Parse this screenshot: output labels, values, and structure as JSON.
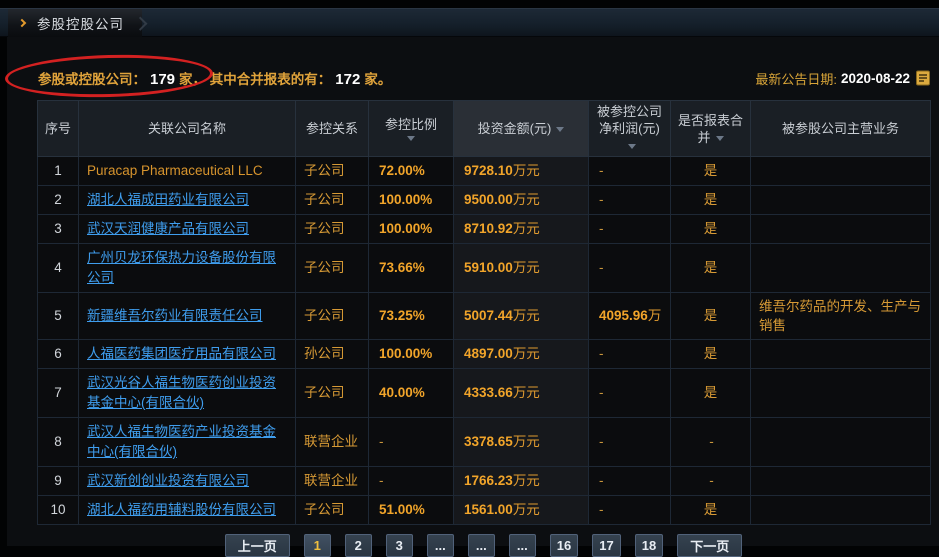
{
  "tab": {
    "title": "参股控股公司"
  },
  "summary": {
    "label1": "参股或控股公司：",
    "count1": "179",
    "unit1": "家，",
    "label2": "其中合并报表的有：",
    "count2": "172",
    "unit2": "家。"
  },
  "announcement": {
    "label": "最新公告日期:",
    "date": "2020-08-22",
    "icon": "calendar-note-icon"
  },
  "annotation": {
    "shape": "red-ellipse",
    "color": "#d32121",
    "around": "参股或控股公司：179 家，"
  },
  "colors": {
    "accent_orange": "#d79a35",
    "value_orange": "#f2a52a",
    "link_blue": "#3f9ded",
    "annotation_red": "#d32121",
    "page_active_text": "#f0bf3e"
  },
  "table": {
    "headers": [
      {
        "label": "序号",
        "sort": false
      },
      {
        "label": "关联公司名称",
        "sort": false
      },
      {
        "label": "参控关系",
        "sort": false
      },
      {
        "label": "参控比例",
        "sort": true,
        "arrow_below": true
      },
      {
        "label": "投资金额(元)",
        "sort": true,
        "highlight": true
      },
      {
        "label": "被参控公司净利润(元)",
        "sort": true
      },
      {
        "label": "是否报表合并",
        "sort": true
      },
      {
        "label": "被参股公司主营业务",
        "sort": false
      }
    ],
    "rows": [
      {
        "no": "1",
        "name": "Puracap Pharmaceutical LLC",
        "link": false,
        "relation": "子公司",
        "ratio": "72.00%",
        "amount_num": "9728.10",
        "amount_unit": "万元",
        "profit_num": "",
        "profit_unit": "",
        "merged": "是",
        "business": ""
      },
      {
        "no": "2",
        "name": "湖北人福成田药业有限公司",
        "link": true,
        "relation": "子公司",
        "ratio": "100.00%",
        "amount_num": "9500.00",
        "amount_unit": "万元",
        "profit_num": "",
        "profit_unit": "",
        "merged": "是",
        "business": ""
      },
      {
        "no": "3",
        "name": "武汉天润健康产品有限公司",
        "link": true,
        "relation": "子公司",
        "ratio": "100.00%",
        "amount_num": "8710.92",
        "amount_unit": "万元",
        "profit_num": "",
        "profit_unit": "",
        "merged": "是",
        "business": ""
      },
      {
        "no": "4",
        "name": "广州贝龙环保热力设备股份有限公司",
        "link": true,
        "relation": "子公司",
        "ratio": "73.66%",
        "amount_num": "5910.00",
        "amount_unit": "万元",
        "profit_num": "",
        "profit_unit": "",
        "merged": "是",
        "business": ""
      },
      {
        "no": "5",
        "name": "新疆维吾尔药业有限责任公司",
        "link": true,
        "relation": "子公司",
        "ratio": "73.25%",
        "amount_num": "5007.44",
        "amount_unit": "万元",
        "profit_num": "4095.96",
        "profit_unit": "万",
        "merged": "是",
        "business": "维吾尔药品的开发、生产与销售"
      },
      {
        "no": "6",
        "name": "人福医药集团医疗用品有限公司",
        "link": true,
        "relation": "孙公司",
        "ratio": "100.00%",
        "amount_num": "4897.00",
        "amount_unit": "万元",
        "profit_num": "",
        "profit_unit": "",
        "merged": "是",
        "business": ""
      },
      {
        "no": "7",
        "name": "武汉光谷人福生物医药创业投资基金中心(有限合伙)",
        "link": true,
        "relation": "子公司",
        "ratio": "40.00%",
        "amount_num": "4333.66",
        "amount_unit": "万元",
        "profit_num": "",
        "profit_unit": "",
        "merged": "是",
        "business": ""
      },
      {
        "no": "8",
        "name": "武汉人福生物医药产业投资基金中心(有限合伙)",
        "link": true,
        "relation": "联营企业",
        "ratio": "-",
        "amount_num": "3378.65",
        "amount_unit": "万元",
        "profit_num": "",
        "profit_unit": "",
        "merged": "-",
        "business": ""
      },
      {
        "no": "9",
        "name": "武汉新创创业投资有限公司",
        "link": true,
        "relation": "联营企业",
        "ratio": "-",
        "amount_num": "1766.23",
        "amount_unit": "万元",
        "profit_num": "",
        "profit_unit": "",
        "merged": "-",
        "business": ""
      },
      {
        "no": "10",
        "name": "湖北人福药用辅料股份有限公司",
        "link": true,
        "relation": "子公司",
        "ratio": "51.00%",
        "amount_num": "1561.00",
        "amount_unit": "万元",
        "profit_num": "",
        "profit_unit": "",
        "merged": "是",
        "business": ""
      }
    ]
  },
  "pagination": {
    "prev_label": "上一页",
    "next_label": "下一页",
    "pages": [
      "1",
      "2",
      "3",
      "...",
      "...",
      "...",
      "16",
      "17",
      "18"
    ],
    "active": "1"
  }
}
